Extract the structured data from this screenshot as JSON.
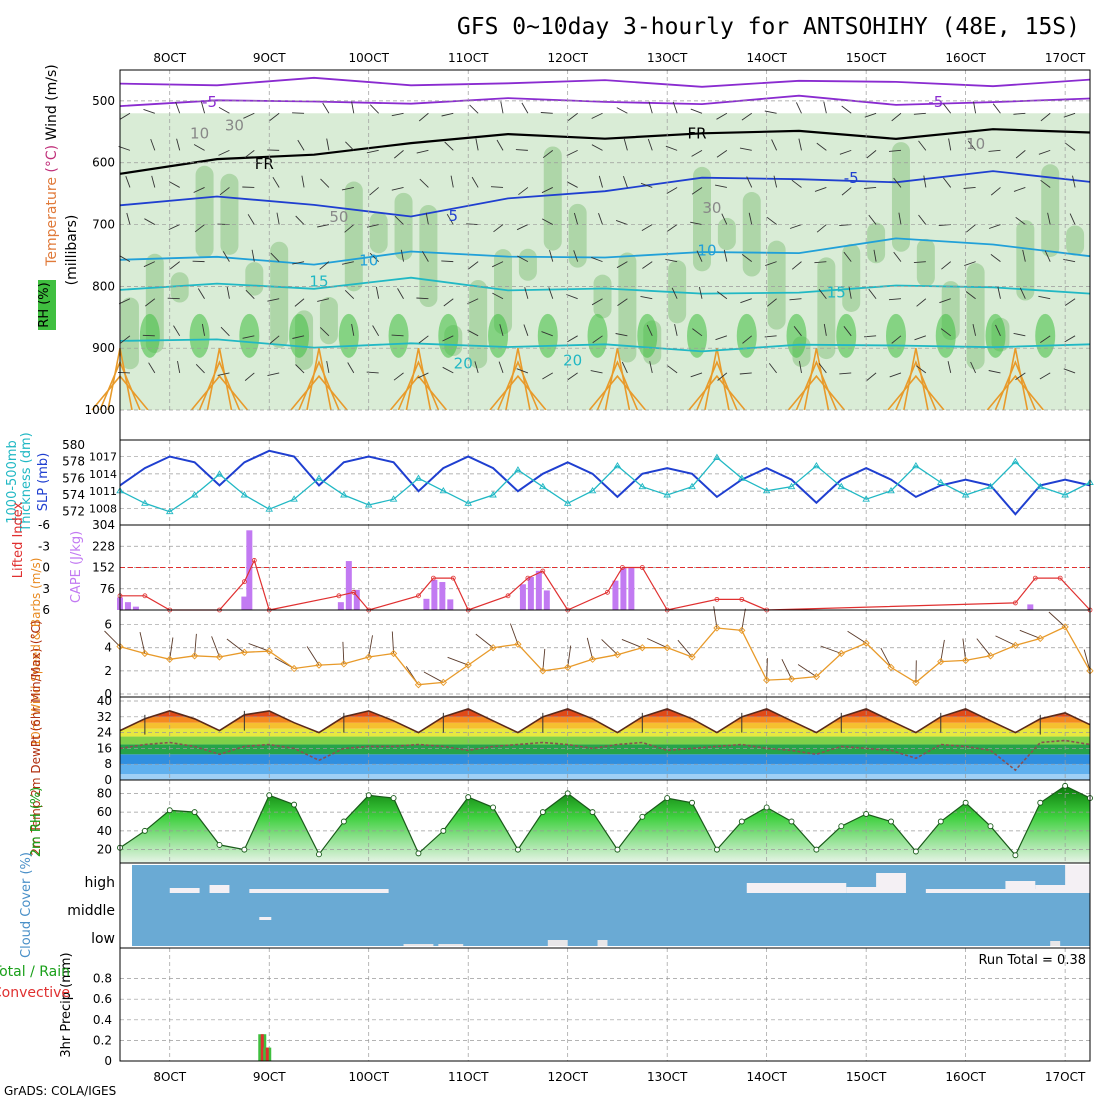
{
  "title": "GFS 0~10day 3-hourly for ANTSOHIHY (48E, 15S)",
  "footer": "GrADS: COLA/IGES",
  "colors": {
    "frame": "#000000",
    "grid": "#9a9a9a",
    "blue": "#1f3fd0",
    "cyan": "#21b8c4",
    "violet": "#c27af2",
    "red": "#e03030",
    "orange": "#e89a2a",
    "purple": "#8a2bd0",
    "green_light": "#d9ecd6",
    "green_mid": "#9fcf98",
    "green_dark": "#3fbf3f",
    "sky": "#6aaad4",
    "barb": "#333333"
  },
  "x_ticks": [
    "8OCT",
    "9OCT",
    "10OCT",
    "11OCT",
    "12OCT",
    "13OCT",
    "14OCT",
    "15OCT",
    "16OCT",
    "17OCT"
  ],
  "chart_data": [
    {
      "id": "profile",
      "type": "contour",
      "ylabel": "(millibars)",
      "ylabel_parts": [
        {
          "text": "Temperature",
          "color": "#e07a3a"
        },
        {
          "text": " (°C) ",
          "color": "#c0307a"
        },
        {
          "text": "Wind (m/s)",
          "color": "#000000"
        }
      ],
      "legend_rh": "RH (%)",
      "yticks": [
        500,
        600,
        700,
        800,
        900,
        1000
      ],
      "ylim": [
        450,
        1000
      ],
      "contour_labels": [
        {
          "text": "-5",
          "day": 8.4,
          "p": 502,
          "color": "#8a2bd0"
        },
        {
          "text": "-5",
          "day": 15.7,
          "p": 502,
          "color": "#8a2bd0"
        },
        {
          "text": "FR",
          "day": 8.95,
          "p": 602,
          "color": "#000000"
        },
        {
          "text": "FR",
          "day": 13.3,
          "p": 553,
          "color": "#000000"
        },
        {
          "text": "-5",
          "day": 14.85,
          "p": 625,
          "color": "#1f3fd0"
        },
        {
          "text": "5",
          "day": 10.85,
          "p": 686,
          "color": "#1f3fd0"
        },
        {
          "text": "10",
          "day": 10.0,
          "p": 758,
          "color": "#21a0d8"
        },
        {
          "text": "10",
          "day": 13.4,
          "p": 742,
          "color": "#21a0d8"
        },
        {
          "text": "15",
          "day": 9.5,
          "p": 792,
          "color": "#21b8c4"
        },
        {
          "text": "15",
          "day": 14.7,
          "p": 810,
          "color": "#21b8c4"
        },
        {
          "text": "20",
          "day": 10.95,
          "p": 925,
          "color": "#21b8c4"
        },
        {
          "text": "20",
          "day": 12.05,
          "p": 920,
          "color": "#21b8c4"
        },
        {
          "text": "10",
          "day": 8.3,
          "p": 553,
          "color": "#888888"
        },
        {
          "text": "30",
          "day": 8.65,
          "p": 540,
          "color": "#888888"
        },
        {
          "text": "50",
          "day": 9.7,
          "p": 688,
          "color": "#888888"
        },
        {
          "text": "30",
          "day": 13.45,
          "p": 673,
          "color": "#888888"
        },
        {
          "text": "10",
          "day": 16.1,
          "p": 570,
          "color": "#888888"
        }
      ],
      "isotherm_levels": [
        {
          "name": "-5",
          "p": [
            472,
            470,
            469,
            471,
            470,
            472,
            471,
            470,
            472,
            470,
            471
          ],
          "color": "#8a2bd0"
        },
        {
          "name": "-5b",
          "p": [
            503,
            500,
            505,
            498,
            500,
            502,
            500,
            498,
            503,
            500,
            502
          ],
          "color": "#8a2bd0"
        },
        {
          "name": "FR",
          "p": [
            612,
            600,
            585,
            565,
            560,
            556,
            553,
            553,
            555,
            550,
            552
          ],
          "color": "#000000"
        },
        {
          "name": "5",
          "p": [
            668,
            660,
            662,
            690,
            660,
            640,
            630,
            625,
            628,
            620,
            626
          ],
          "color": "#1f3fd0"
        },
        {
          "name": "10",
          "p": [
            762,
            752,
            760,
            750,
            748,
            752,
            750,
            740,
            725,
            735,
            745
          ],
          "color": "#21a0d8"
        },
        {
          "name": "15",
          "p": [
            812,
            790,
            805,
            790,
            800,
            808,
            812,
            805,
            805,
            798,
            810
          ],
          "color": "#21b8c4"
        },
        {
          "name": "20",
          "p": [
            890,
            880,
            905,
            890,
            895,
            900,
            900,
            895,
            900,
            892,
            898
          ],
          "color": "#21b8c4"
        }
      ]
    },
    {
      "id": "slp",
      "type": "line",
      "ylabel_left": "Thickness (dm)",
      "ylabel_left2": "1000-500mb",
      "ylabel_right": "SLP (mb)",
      "yticks_left": [
        572,
        574,
        576,
        578,
        580
      ],
      "yticks_right": [
        1008,
        1011,
        1014,
        1017
      ],
      "ylim_left": [
        571,
        580
      ],
      "ylim_right": [
        1006,
        1019
      ],
      "x": [
        7.5,
        7.75,
        8.0,
        8.25,
        8.5,
        8.75,
        9.0,
        9.25,
        9.5,
        9.75,
        10.0,
        10.25,
        10.5,
        10.75,
        11.0,
        11.25,
        11.5,
        11.75,
        12.0,
        12.25,
        12.5,
        12.75,
        13.0,
        13.25,
        13.5,
        13.75,
        14.0,
        14.25,
        14.5,
        14.75,
        15.0,
        15.25,
        15.5,
        15.75,
        16.0,
        16.25,
        16.5,
        16.75,
        17.0,
        17.25
      ],
      "series": [
        {
          "name": "SLP",
          "axis": "right",
          "color": "#1f3fd0",
          "values": [
            1012,
            1015,
            1017,
            1016,
            1012,
            1016,
            1018,
            1017,
            1012,
            1016,
            1017,
            1016,
            1011,
            1015,
            1017,
            1015,
            1011,
            1014,
            1016,
            1014,
            1010,
            1014,
            1015,
            1014,
            1010,
            1013,
            1015,
            1013,
            1009,
            1013,
            1015,
            1013,
            1010,
            1012,
            1013,
            1012,
            1007,
            1012,
            1013,
            1012
          ]
        },
        {
          "name": "Thickness",
          "axis": "left",
          "color": "#21b8c4",
          "values": [
            574.5,
            573.0,
            572.0,
            574.0,
            576.5,
            574.0,
            572.3,
            573.5,
            576.0,
            574.0,
            572.8,
            573.5,
            576.0,
            574.5,
            573.0,
            574.0,
            577.0,
            575.0,
            573.0,
            574.5,
            577.5,
            575.0,
            574.0,
            575.0,
            578.5,
            576.0,
            574.5,
            575.0,
            577.5,
            575.0,
            573.5,
            574.5,
            577.5,
            575.5,
            574.0,
            575.0,
            578.0,
            575.0,
            574.0,
            575.5
          ]
        }
      ]
    },
    {
      "id": "cape",
      "type": "bar",
      "ylabel_left": "Lifted Index",
      "ylabel_right": "CAPE (J/kg)",
      "yticks_left": [
        "6",
        "3",
        "0",
        "-3",
        "-6"
      ],
      "yticks_right": [
        76,
        152,
        228,
        304
      ],
      "ylim_right": [
        0,
        304
      ],
      "ylim_left": [
        6,
        -6
      ],
      "x": [
        7.5,
        7.58,
        7.66,
        8.75,
        8.8,
        9.72,
        9.8,
        9.88,
        10.58,
        10.66,
        10.74,
        10.82,
        11.55,
        11.63,
        11.71,
        11.79,
        12.48,
        12.56,
        12.64,
        16.65
      ],
      "values": [
        45,
        28,
        12,
        48,
        285,
        28,
        175,
        72,
        40,
        108,
        100,
        38,
        92,
        118,
        140,
        70,
        105,
        150,
        150,
        20
      ],
      "lifted_index": [
        [
          7.5,
          4.0
        ],
        [
          7.75,
          4.0
        ],
        [
          8.0,
          6.0
        ],
        [
          8.5,
          6.0
        ],
        [
          8.75,
          2.0
        ],
        [
          8.85,
          -1.0
        ],
        [
          9.0,
          6.0
        ],
        [
          9.7,
          4.0
        ],
        [
          9.85,
          3.5
        ],
        [
          10.0,
          6.0
        ],
        [
          10.5,
          4.0
        ],
        [
          10.65,
          1.5
        ],
        [
          10.85,
          1.5
        ],
        [
          11.0,
          6.0
        ],
        [
          11.4,
          4.0
        ],
        [
          11.6,
          1.5
        ],
        [
          11.75,
          0.5
        ],
        [
          12.0,
          6.0
        ],
        [
          12.4,
          3.5
        ],
        [
          12.55,
          0.0
        ],
        [
          12.75,
          0.0
        ],
        [
          13.0,
          6.0
        ],
        [
          13.5,
          4.5
        ],
        [
          13.75,
          4.5
        ],
        [
          14.0,
          6.0
        ],
        [
          16.5,
          5.0
        ],
        [
          16.7,
          1.5
        ],
        [
          16.95,
          1.5
        ],
        [
          17.25,
          6.0
        ]
      ]
    },
    {
      "id": "wind10m",
      "type": "line",
      "ylabel": "10m Wind Speed & Barbs (m/s)",
      "yticks": [
        0,
        2,
        4,
        6
      ],
      "ylim": [
        0,
        7
      ],
      "x": [
        7.5,
        7.75,
        8.0,
        8.25,
        8.5,
        8.75,
        9.0,
        9.25,
        9.5,
        9.75,
        10.0,
        10.25,
        10.5,
        10.75,
        11.0,
        11.25,
        11.5,
        11.75,
        12.0,
        12.25,
        12.5,
        12.75,
        13.0,
        13.25,
        13.5,
        13.75,
        14.0,
        14.25,
        14.5,
        14.75,
        15.0,
        15.25,
        15.5,
        15.75,
        16.0,
        16.25,
        16.5,
        16.75,
        17.0,
        17.25
      ],
      "values": [
        4.1,
        3.5,
        3.0,
        3.3,
        3.2,
        3.6,
        3.7,
        2.2,
        2.5,
        2.6,
        3.2,
        3.5,
        0.8,
        1.0,
        2.5,
        4.0,
        4.3,
        2.0,
        2.3,
        3.0,
        3.4,
        4.0,
        4.0,
        3.2,
        5.7,
        5.5,
        1.2,
        1.3,
        1.5,
        3.5,
        4.4,
        2.3,
        1.0,
        2.8,
        2.9,
        3.3,
        4.2,
        4.8,
        5.8,
        2.0
      ]
    },
    {
      "id": "temp2m",
      "type": "area",
      "ylabel": "2m Temp 2m DewPt (6hr Min/Max) (°C)",
      "yticks": [
        0,
        8,
        16,
        24,
        32,
        40
      ],
      "ylim": [
        0,
        40
      ],
      "x": [
        7.5,
        7.75,
        8.0,
        8.25,
        8.5,
        8.75,
        9.0,
        9.25,
        9.5,
        9.75,
        10.0,
        10.25,
        10.5,
        10.75,
        11.0,
        11.25,
        11.5,
        11.75,
        12.0,
        12.25,
        12.5,
        12.75,
        13.0,
        13.25,
        13.5,
        13.75,
        14.0,
        14.25,
        14.5,
        14.75,
        15.0,
        15.25,
        15.5,
        15.75,
        16.0,
        16.25,
        16.5,
        16.75,
        17.0,
        17.25
      ],
      "series": [
        {
          "name": "Temp",
          "values": [
            25,
            31,
            35,
            31,
            25,
            33,
            35,
            29,
            24,
            32,
            35,
            30,
            24,
            32,
            36,
            30,
            24,
            32,
            36,
            31,
            24,
            32,
            36,
            31,
            24,
            32,
            36,
            30,
            24,
            32,
            36,
            30,
            24,
            32,
            36,
            30,
            24,
            31,
            34,
            28
          ]
        },
        {
          "name": "DewPt",
          "values": [
            16,
            18,
            19,
            17,
            13,
            17,
            18,
            16,
            10,
            16,
            17,
            17,
            18,
            17,
            15,
            17,
            18,
            19,
            18,
            16,
            18,
            19,
            15,
            16,
            17,
            18,
            16,
            15,
            13,
            17,
            16,
            15,
            11,
            18,
            17,
            15,
            5,
            19,
            20,
            18
          ]
        }
      ]
    },
    {
      "id": "rh2m",
      "type": "area",
      "ylabel": "2m RH (%)",
      "yticks": [
        20,
        40,
        60,
        80
      ],
      "ylim": [
        10,
        90
      ],
      "x": [
        7.5,
        7.75,
        8.0,
        8.25,
        8.5,
        8.75,
        9.0,
        9.25,
        9.5,
        9.75,
        10.0,
        10.25,
        10.5,
        10.75,
        11.0,
        11.25,
        11.5,
        11.75,
        12.0,
        12.25,
        12.5,
        12.75,
        13.0,
        13.25,
        13.5,
        13.75,
        14.0,
        14.25,
        14.5,
        14.75,
        15.0,
        15.25,
        15.5,
        15.75,
        16.0,
        16.25,
        16.5,
        16.75,
        17.0,
        17.25
      ],
      "values": [
        22,
        40,
        62,
        60,
        25,
        20,
        78,
        68,
        15,
        50,
        78,
        75,
        16,
        40,
        76,
        65,
        20,
        60,
        80,
        60,
        20,
        55,
        75,
        70,
        20,
        50,
        65,
        50,
        20,
        45,
        58,
        50,
        18,
        50,
        70,
        45,
        14,
        70,
        88,
        75
      ]
    },
    {
      "id": "cloud",
      "type": "heatmap",
      "ylabel": "Cloud Cover (%)",
      "yticks": [
        "high",
        "middle",
        "low"
      ]
    },
    {
      "id": "precip",
      "type": "bar",
      "ylabel_left": "Total / Rain",
      "ylabel_left2": "Convective",
      "ylabel": "3hr Precip (mm)",
      "run_total_label": "Run Total = 0.38",
      "yticks": [
        0,
        0.2,
        0.4,
        0.6,
        0.8
      ],
      "ylim": [
        0,
        1.0
      ],
      "x": [
        8.93,
        8.98
      ],
      "values": [
        0.26,
        0.13
      ],
      "convective": [
        0.26,
        0.13
      ]
    }
  ]
}
